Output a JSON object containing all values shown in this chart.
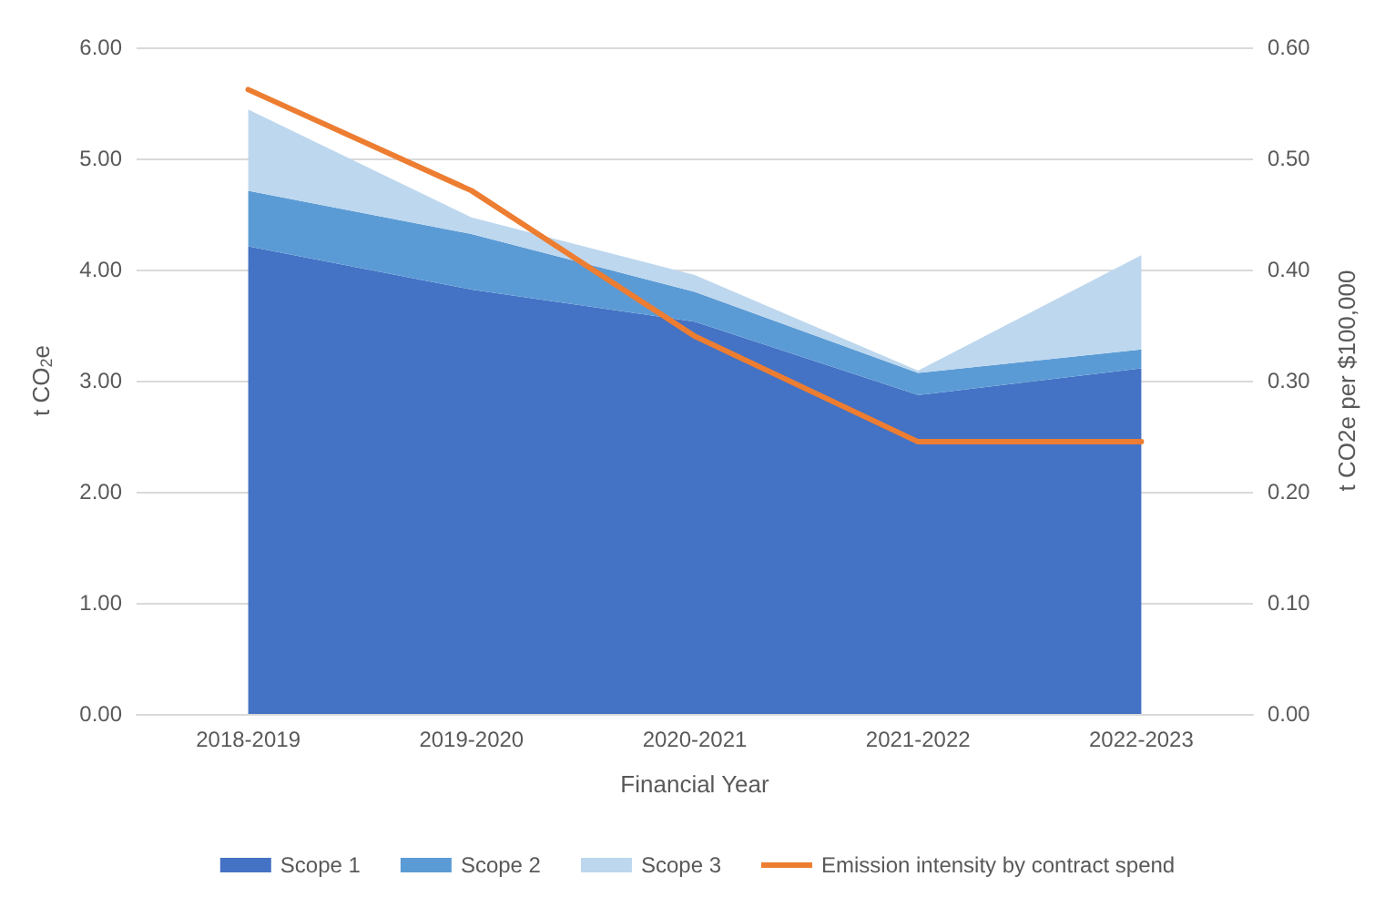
{
  "chart_data": {
    "type": "area",
    "stacked": true,
    "xlabel": "Financial Year",
    "ylabel": "t CO$_{2}$e",
    "y2label": "t CO2e per $100,000",
    "categories": [
      "2018-2019",
      "2019-2020",
      "2020-2021",
      "2021-2022",
      "2022-2023"
    ],
    "series": [
      {
        "name": "Scope 1",
        "color": "#4472c4",
        "values": [
          4.21,
          3.82,
          3.53,
          2.87,
          3.11
        ]
      },
      {
        "name": "Scope 2",
        "color": "#5b9bd5",
        "values": [
          0.5,
          0.5,
          0.27,
          0.2,
          0.17
        ]
      },
      {
        "name": "Scope 3",
        "color": "#bdd7ee",
        "values": [
          0.73,
          0.15,
          0.15,
          0.02,
          0.85
        ]
      },
      {
        "name": "Emission intensity by contract spend",
        "type": "line",
        "axis": "y2",
        "color": "#ed7d31",
        "values": [
          0.562,
          0.471,
          0.34,
          0.245,
          0.245
        ]
      }
    ],
    "ylim": [
      0,
      6
    ],
    "yticks": [
      {
        "value": 0,
        "label": "0.00"
      },
      {
        "value": 1,
        "label": "1.00"
      },
      {
        "value": 2,
        "label": "2.00"
      },
      {
        "value": 3,
        "label": "3.00"
      },
      {
        "value": 4,
        "label": "4.00"
      },
      {
        "value": 5,
        "label": "5.00"
      },
      {
        "value": 6,
        "label": "6.00"
      }
    ],
    "y2lim": [
      0,
      0.6
    ],
    "y2ticks": [
      {
        "value": 0,
        "label": "0.00"
      },
      {
        "value": 0.1,
        "label": "0.10"
      },
      {
        "value": 0.2,
        "label": "0.20"
      },
      {
        "value": 0.3,
        "label": "0.30"
      },
      {
        "value": 0.4,
        "label": "0.40"
      },
      {
        "value": 0.5,
        "label": "0.50"
      },
      {
        "value": 0.6,
        "label": "0.60"
      }
    ],
    "grid": "y",
    "legend": "bottom",
    "marker": "none",
    "line_style": "solid"
  }
}
